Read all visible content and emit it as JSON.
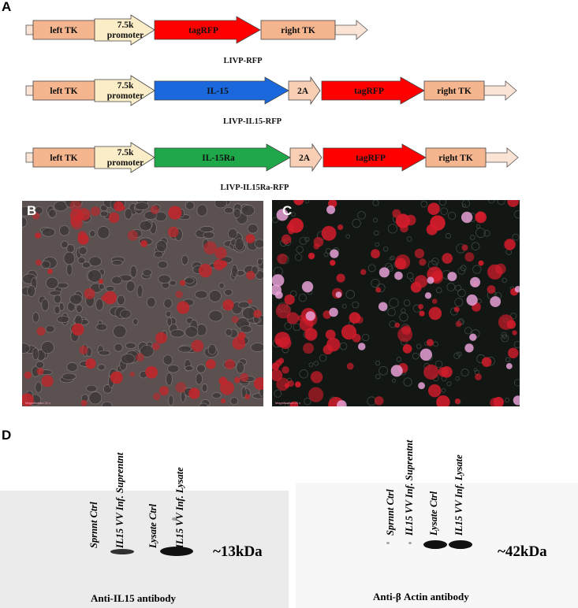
{
  "panel_a": {
    "letter": "A",
    "constructs": [
      {
        "caption": "LIVP-RFP",
        "segments": [
          "left TK",
          "7.5k promoter",
          "tagRFP",
          "right TK"
        ]
      },
      {
        "caption": "LIVP-IL15-RFP",
        "segments": [
          "left TK",
          "7.5k promoter",
          "IL-15",
          "2A",
          "tagRFP",
          "right TK"
        ]
      },
      {
        "caption": "LIVP-IL15Ra-RFP",
        "segments": [
          "left TK",
          "7.5k promoter",
          "IL-15Ra",
          "2A",
          "tagRFP",
          "right TK"
        ]
      }
    ],
    "colors": {
      "tk": "#f5b58e",
      "promoter": "#fbedc7",
      "rfp": "#ff0000",
      "il15": "#1b68dd",
      "il15ra": "#1ea84a",
      "twoA": "#f8cfb5",
      "tail": "#fbe3d6"
    }
  },
  "panel_b": {
    "letter": "B",
    "caption": "Magnification 20 x"
  },
  "panel_c": {
    "letter": "C",
    "caption": "Magnification 20 x"
  },
  "panel_d": {
    "letter": "D",
    "left_blot": {
      "lanes": [
        "Sprnnt Ctrl",
        "IL15 VV Inf. Suprentnt",
        "Lysate Ctrl",
        "IL15 VV Inf. Lysate"
      ],
      "size_marker": "~13kDa",
      "antibody": "Anti-IL15 antibody"
    },
    "right_blot": {
      "lanes": [
        "Sprnnt Ctrl",
        "IL15 VV Inf. Suprentnt",
        "Lysate Ctrl",
        "IL15 VV Inf. Lysate"
      ],
      "size_marker": "~42kDa",
      "antibody": "Anti-β Actin antibody"
    }
  }
}
